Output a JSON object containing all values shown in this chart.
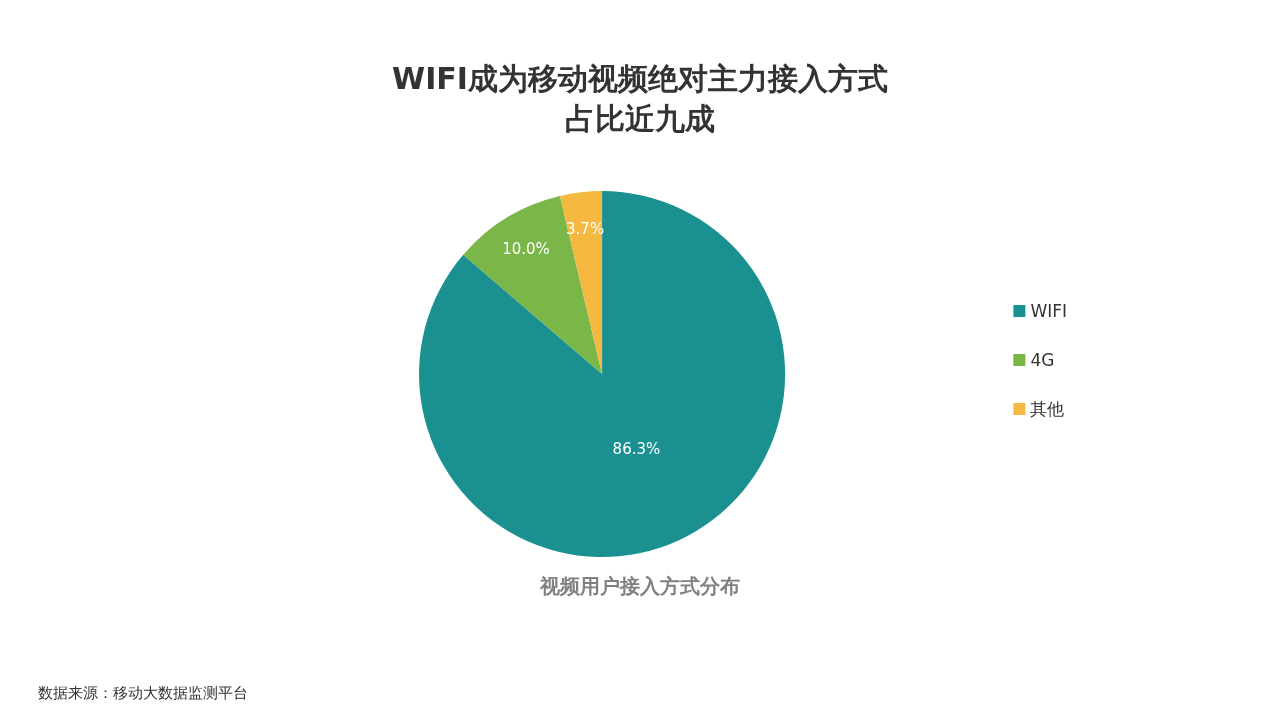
{
  "chart_data": {
    "type": "pie",
    "title": "WIFI成为移动视频绝对主力接入方式",
    "subtitle": "占比近九成",
    "categories": [
      "WIFI",
      "4G",
      "其他"
    ],
    "values": [
      86.3,
      10.0,
      3.7
    ],
    "value_labels": [
      "86.3%",
      "10.0%",
      "3.7%"
    ],
    "colors": [
      "#1a9090",
      "#7ab648",
      "#f5b942"
    ],
    "legend": "right",
    "annotations": [
      "视频用户接入方式分布",
      "数据来源：移动大数据监测平台"
    ]
  }
}
